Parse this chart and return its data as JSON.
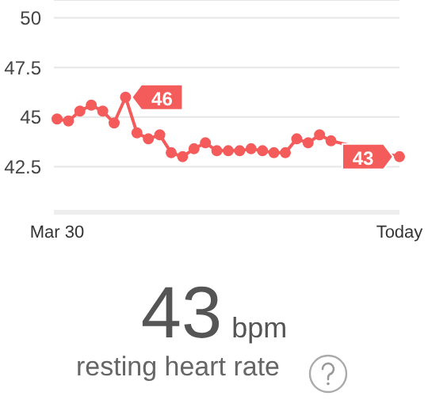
{
  "chart_data": {
    "type": "line",
    "categories": [
      "Mar 30",
      null,
      null,
      null,
      null,
      null,
      null,
      null,
      null,
      null,
      null,
      null,
      null,
      null,
      null,
      null,
      null,
      null,
      null,
      null,
      null,
      null,
      null,
      null,
      null,
      null,
      null,
      null,
      null,
      null,
      "Today"
    ],
    "series": [
      {
        "color": "#f45b5b",
        "values": [
          44.9,
          44.8,
          45.3,
          45.6,
          45.3,
          44.7,
          46,
          44.2,
          43.9,
          44.1,
          43.2,
          43.0,
          43.4,
          43.7,
          43.3,
          43.3,
          43.3,
          43.4,
          43.3,
          43.2,
          43.2,
          43.9,
          43.7,
          44.1,
          43.8,
          null,
          null,
          null,
          null,
          null,
          43
        ],
        "value_labels": [
          null,
          null,
          null,
          null,
          null,
          null,
          "46",
          null,
          null,
          null,
          null,
          null,
          null,
          null,
          null,
          null,
          null,
          null,
          null,
          null,
          null,
          null,
          null,
          null,
          null,
          null,
          null,
          null,
          null,
          null,
          "43"
        ]
      }
    ],
    "ylim": [
      40.2,
      50.9
    ],
    "yticks": [
      42.5,
      45,
      47.5,
      50
    ],
    "grid": "y",
    "marker": "circle",
    "line_style": "solid",
    "annotations": [
      "43",
      "bpm",
      "resting heart rate"
    ]
  }
}
